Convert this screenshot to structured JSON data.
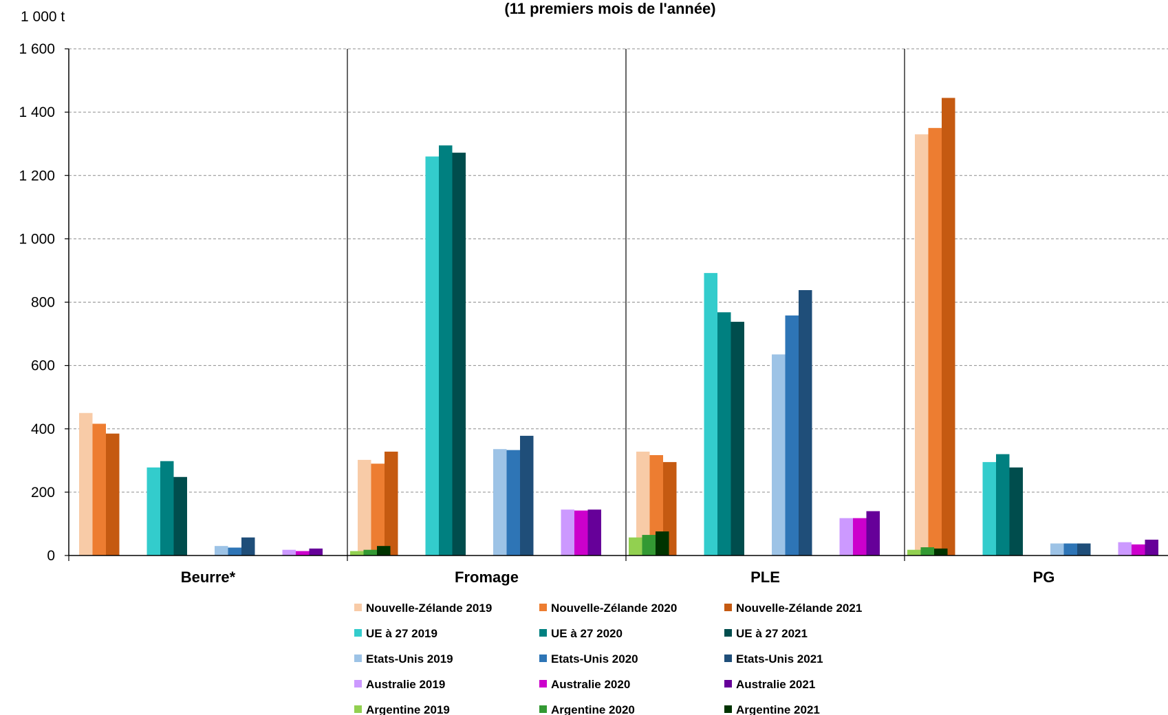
{
  "chart_data": {
    "type": "bar",
    "title": "(11 premiers mois de l'année)",
    "unit_label": "1 000 t",
    "ylim": [
      0,
      1600
    ],
    "yticks": [
      0,
      200,
      400,
      600,
      800,
      1000,
      1200,
      1400,
      1600
    ],
    "ytick_labels": [
      "0",
      "200",
      "400",
      "600",
      "800",
      "1 000",
      "1 200",
      "1 400",
      "1 600"
    ],
    "grid": true,
    "categories": [
      "Beurre*",
      "Fromage",
      "PLE",
      "PG"
    ],
    "groups": [
      "Nouvelle-Zélande",
      "UE à 27",
      "Etats-Unis",
      "Australie",
      "Argentine"
    ],
    "legend_position": "bottom",
    "series": [
      {
        "name": "Nouvelle-Zélande 2019",
        "group": 0,
        "color": "#F8CBA7",
        "values": [
          450,
          302,
          328,
          1330
        ]
      },
      {
        "name": "Nouvelle-Zélande 2020",
        "group": 0,
        "color": "#ED7D31",
        "values": [
          416,
          290,
          317,
          1350
        ]
      },
      {
        "name": "Nouvelle-Zélande 2021",
        "group": 0,
        "color": "#C55A11",
        "values": [
          385,
          328,
          295,
          1445
        ]
      },
      {
        "name": "UE à 27 2019",
        "group": 1,
        "color": "#33CCCC",
        "values": [
          278,
          1260,
          892,
          295
        ]
      },
      {
        "name": "UE à 27 2020",
        "group": 1,
        "color": "#008080",
        "values": [
          298,
          1295,
          768,
          320
        ]
      },
      {
        "name": "UE à 27 2021",
        "group": 1,
        "color": "#004D4D",
        "values": [
          248,
          1272,
          738,
          278
        ]
      },
      {
        "name": "Etats-Unis 2019",
        "group": 2,
        "color": "#9DC3E6",
        "values": [
          30,
          336,
          635,
          38
        ]
      },
      {
        "name": "Etats-Unis 2020",
        "group": 2,
        "color": "#2E75B6",
        "values": [
          25,
          333,
          758,
          38
        ]
      },
      {
        "name": "Etats-Unis 2021",
        "group": 2,
        "color": "#1F4E79",
        "values": [
          57,
          378,
          838,
          38
        ]
      },
      {
        "name": "Australie 2019",
        "group": 3,
        "color": "#CC99FF",
        "values": [
          18,
          145,
          118,
          42
        ]
      },
      {
        "name": "Australie 2020",
        "group": 3,
        "color": "#CC00CC",
        "values": [
          14,
          142,
          118,
          35
        ]
      },
      {
        "name": "Australie 2021",
        "group": 3,
        "color": "#660099",
        "values": [
          22,
          145,
          140,
          50
        ]
      },
      {
        "name": "Argentine 2019",
        "group": 4,
        "color": "#92D050",
        "values": [
          14,
          57,
          18,
          82
        ]
      },
      {
        "name": "Argentine 2020",
        "group": 4,
        "color": "#339933",
        "values": [
          18,
          65,
          26,
          140
        ]
      },
      {
        "name": "Argentine 2021",
        "group": 4,
        "color": "#003300",
        "values": [
          30,
          76,
          22,
          130
        ]
      }
    ]
  }
}
